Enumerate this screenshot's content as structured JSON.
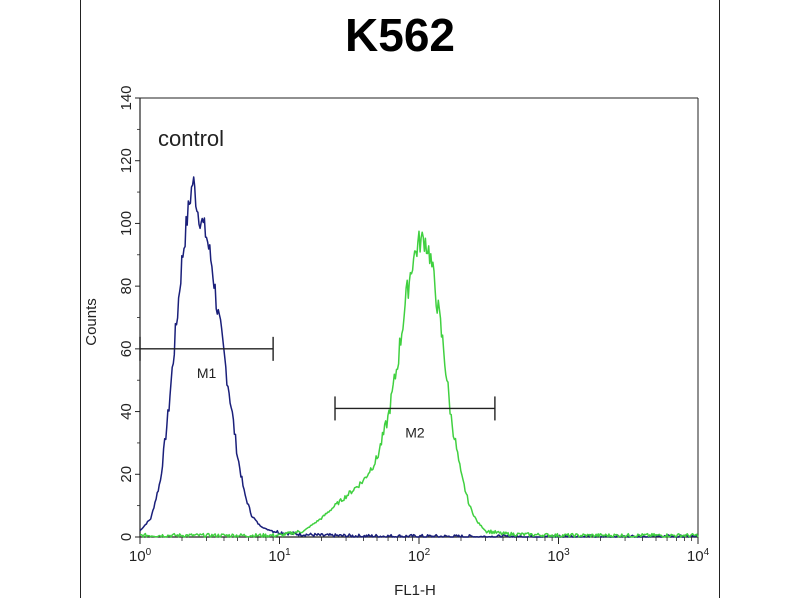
{
  "chart_data": {
    "type": "line",
    "title": "K562",
    "xlabel": "FL1-H",
    "ylabel": "Counts",
    "x_scale": "log",
    "xlim": [
      1,
      10000
    ],
    "ylim": [
      0,
      140
    ],
    "x_ticks": [
      {
        "value": 1,
        "base": "10",
        "exp": "0"
      },
      {
        "value": 10,
        "base": "10",
        "exp": "1"
      },
      {
        "value": 100,
        "base": "10",
        "exp": "2"
      },
      {
        "value": 1000,
        "base": "10",
        "exp": "3"
      },
      {
        "value": 10000,
        "base": "10",
        "exp": "4"
      }
    ],
    "y_ticks": [
      "0",
      "20",
      "40",
      "60",
      "80",
      "100",
      "120",
      "140"
    ],
    "annotation": "control",
    "series": [
      {
        "color": "#1a1f7a",
        "x": [
          1.0,
          1.2,
          1.4,
          1.6,
          1.8,
          2.0,
          2.2,
          2.4,
          2.6,
          2.8,
          3.0,
          3.3,
          3.6,
          4.0,
          4.5,
          5.0,
          5.6,
          6.3,
          7.1,
          8.0,
          10,
          13,
          20,
          40,
          100,
          300,
          1000,
          10000
        ],
        "y": [
          2,
          6,
          18,
          40,
          65,
          88,
          103,
          114,
          104,
          100,
          96,
          86,
          72,
          58,
          42,
          26,
          14,
          7,
          4,
          2.5,
          1.5,
          1,
          0.5,
          0.3,
          0.2,
          0.1,
          0.1,
          0.1
        ]
      },
      {
        "color": "#40d040",
        "x": [
          1.0,
          10,
          15,
          20,
          25,
          30,
          40,
          50,
          60,
          70,
          80,
          90,
          100,
          110,
          120,
          130,
          150,
          170,
          200,
          230,
          260,
          300,
          400,
          1000,
          10000
        ],
        "y": [
          0.5,
          0.5,
          2,
          6,
          10,
          13,
          18,
          25,
          38,
          55,
          75,
          88,
          94,
          95,
          90,
          80,
          60,
          38,
          20,
          10,
          5,
          2,
          1,
          0.5,
          0.5
        ]
      }
    ],
    "markers": [
      {
        "label": "M1",
        "x_start": 1.0,
        "x_end": 9.0,
        "y": 60
      },
      {
        "label": "M2",
        "x_start": 25,
        "x_end": 350,
        "y": 41
      }
    ]
  }
}
